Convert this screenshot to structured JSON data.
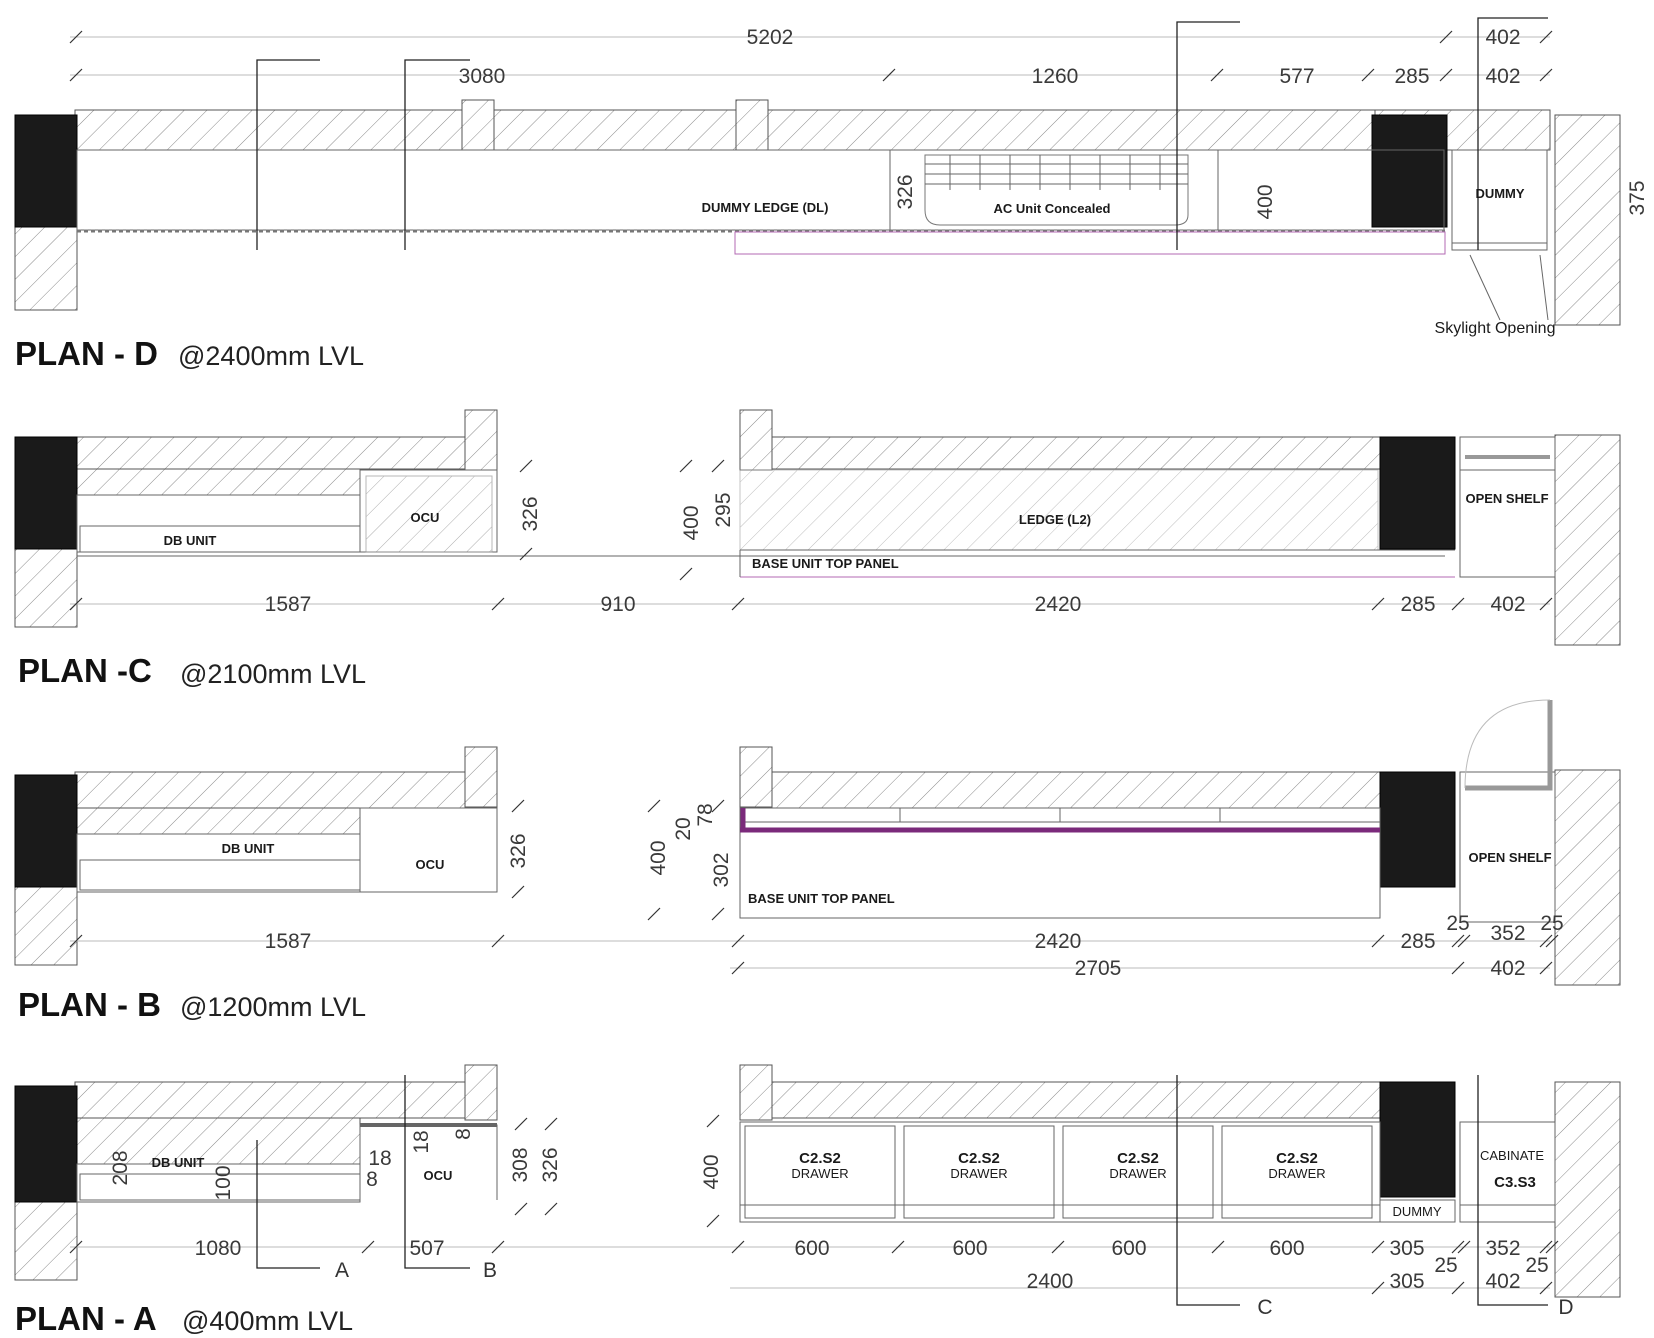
{
  "plan_d": {
    "title": "PLAN - D",
    "level": "@2400mm LVL",
    "dims_top": [
      "5202",
      "402"
    ],
    "dims_second": [
      "3080",
      "1260",
      "577",
      "285",
      "402"
    ],
    "dim_vertical": [
      "326",
      "400",
      "375"
    ],
    "labels": {
      "dummy_ledge": "DUMMY LEDGE (DL)",
      "ac_unit": "AC Unit Concealed",
      "dummy": "DUMMY",
      "skylight": "Skylight Opening"
    }
  },
  "plan_c": {
    "title": "PLAN -C",
    "level": "@2100mm LVL",
    "dims_bottom": [
      "1587",
      "910",
      "2420",
      "285",
      "402"
    ],
    "dim_vertical": [
      "326",
      "400",
      "295"
    ],
    "labels": {
      "db_unit": "DB UNIT",
      "ocu": "OCU",
      "ledge": "LEDGE (L2)",
      "base_panel": "BASE UNIT TOP PANEL",
      "open_shelf": "OPEN SHELF"
    }
  },
  "plan_b": {
    "title": "PLAN - B",
    "level": "@1200mm LVL",
    "dims_bottom": [
      "1587",
      "2420",
      "285",
      "352",
      "2705",
      "402"
    ],
    "dims_small": [
      "25",
      "25"
    ],
    "dim_vertical": [
      "326",
      "400",
      "20",
      "78",
      "302"
    ],
    "labels": {
      "db_unit": "DB UNIT",
      "ocu": "OCU",
      "base_panel": "BASE UNIT TOP PANEL",
      "open_shelf": "OPEN SHELF"
    }
  },
  "plan_a": {
    "title": "PLAN - A",
    "level": "@400mm LVL",
    "dims_bottom": [
      "1080",
      "507",
      "600",
      "600",
      "600",
      "600",
      "305",
      "352",
      "2400",
      "305",
      "402"
    ],
    "dims_small": [
      "25",
      "25"
    ],
    "dims_misc": [
      "208",
      "100",
      "18",
      "8",
      "18",
      "8",
      "308",
      "326",
      "400"
    ],
    "labels": {
      "db_unit": "DB UNIT",
      "ocu": "OCU",
      "drawer_code": "C2.S2",
      "drawer": "DRAWER",
      "dummy": "DUMMY",
      "cabinate": "CABINATE",
      "cabinate_code": "C3.S3"
    },
    "sections": [
      "A",
      "B",
      "C",
      "D"
    ]
  }
}
